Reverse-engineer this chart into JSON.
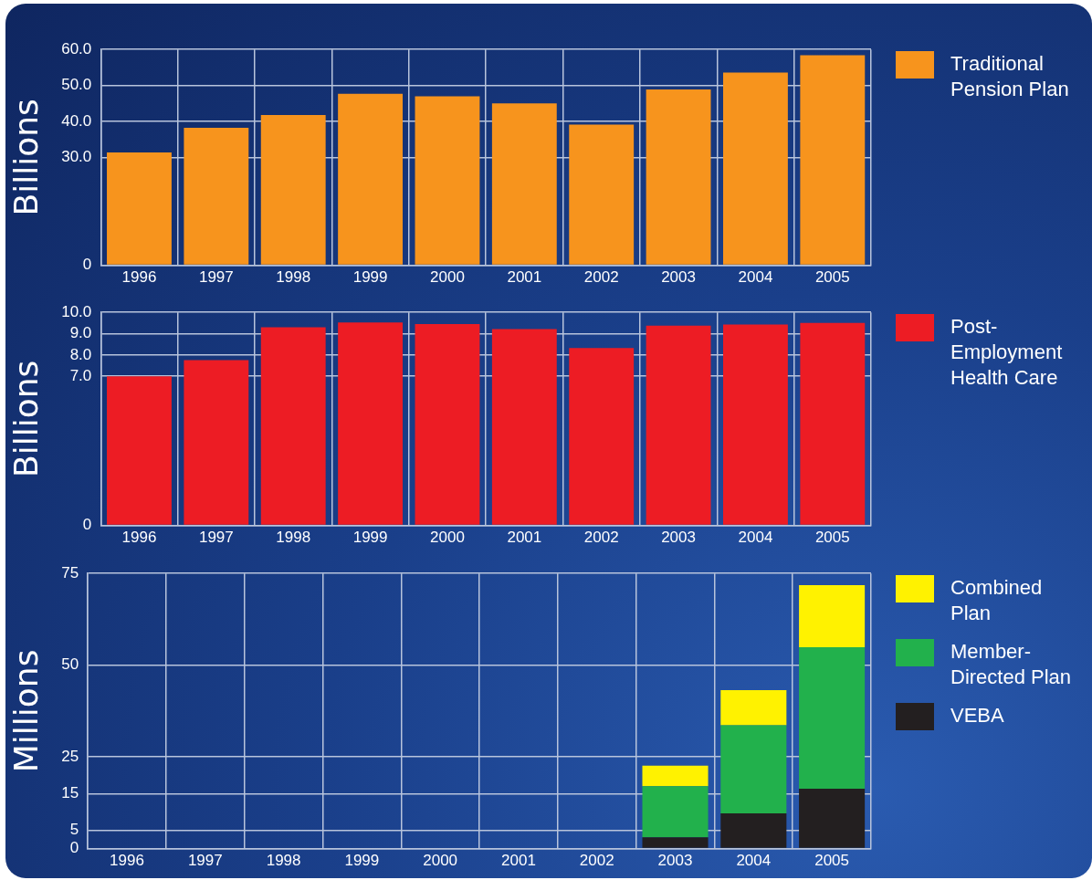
{
  "chart_data": [
    {
      "type": "bar",
      "ylabel": "Billions",
      "categories": [
        "1996",
        "1997",
        "1998",
        "1999",
        "2000",
        "2001",
        "2002",
        "2003",
        "2004",
        "2005"
      ],
      "series": [
        {
          "name": "Traditional Pension Plan",
          "color": "#f7941d",
          "values": [
            31.4,
            38.2,
            41.8,
            47.7,
            47.0,
            45.0,
            39.1,
            48.9,
            53.6,
            58.4
          ]
        }
      ],
      "ylim": [
        0,
        60
      ],
      "yticks": [
        0,
        {
          "value": 30,
          "label": "30.0"
        },
        {
          "value": 40,
          "label": "40.0"
        },
        {
          "value": 50,
          "label": "50.0"
        },
        {
          "value": 60,
          "label": "60.0"
        }
      ],
      "grid": true,
      "legend": "right"
    },
    {
      "type": "bar",
      "ylabel": "Billions",
      "categories": [
        "1996",
        "1997",
        "1998",
        "1999",
        "2000",
        "2001",
        "2002",
        "2003",
        "2004",
        "2005"
      ],
      "series": [
        {
          "name": "Post-Employment Health Care",
          "color": "#ed1c24",
          "values": [
            7.0,
            7.76,
            9.3,
            9.53,
            9.45,
            9.22,
            8.33,
            9.38,
            9.43,
            9.5
          ]
        }
      ],
      "ylim": [
        0,
        10
      ],
      "yticks": [
        0,
        {
          "value": 7,
          "label": "7.0"
        },
        {
          "value": 8,
          "label": "8.0"
        },
        {
          "value": 9,
          "label": "9.0"
        },
        {
          "value": 10,
          "label": "10.0"
        }
      ],
      "grid": true,
      "legend": "right"
    },
    {
      "type": "bar",
      "ylabel": "Millions",
      "stacked": true,
      "categories": [
        "1996",
        "1997",
        "1998",
        "1999",
        "2000",
        "2001",
        "2002",
        "2003",
        "2004",
        "2005"
      ],
      "series": [
        {
          "name": "VEBA",
          "color": "#231f20",
          "values": [
            null,
            null,
            null,
            null,
            null,
            null,
            null,
            3.1,
            9.6,
            16.3
          ]
        },
        {
          "name": "Member-Directed Plan",
          "color": "#22b14c",
          "values": [
            null,
            null,
            null,
            null,
            null,
            null,
            null,
            13.9,
            24.0,
            38.6
          ]
        },
        {
          "name": "Combined Plan",
          "color": "#fff200",
          "values": [
            null,
            null,
            null,
            null,
            null,
            null,
            null,
            5.6,
            9.6,
            16.9
          ]
        }
      ],
      "ylim": [
        0,
        75
      ],
      "yticks": [
        0,
        5,
        15,
        25,
        50,
        75
      ],
      "grid": true,
      "legend": "right"
    }
  ]
}
